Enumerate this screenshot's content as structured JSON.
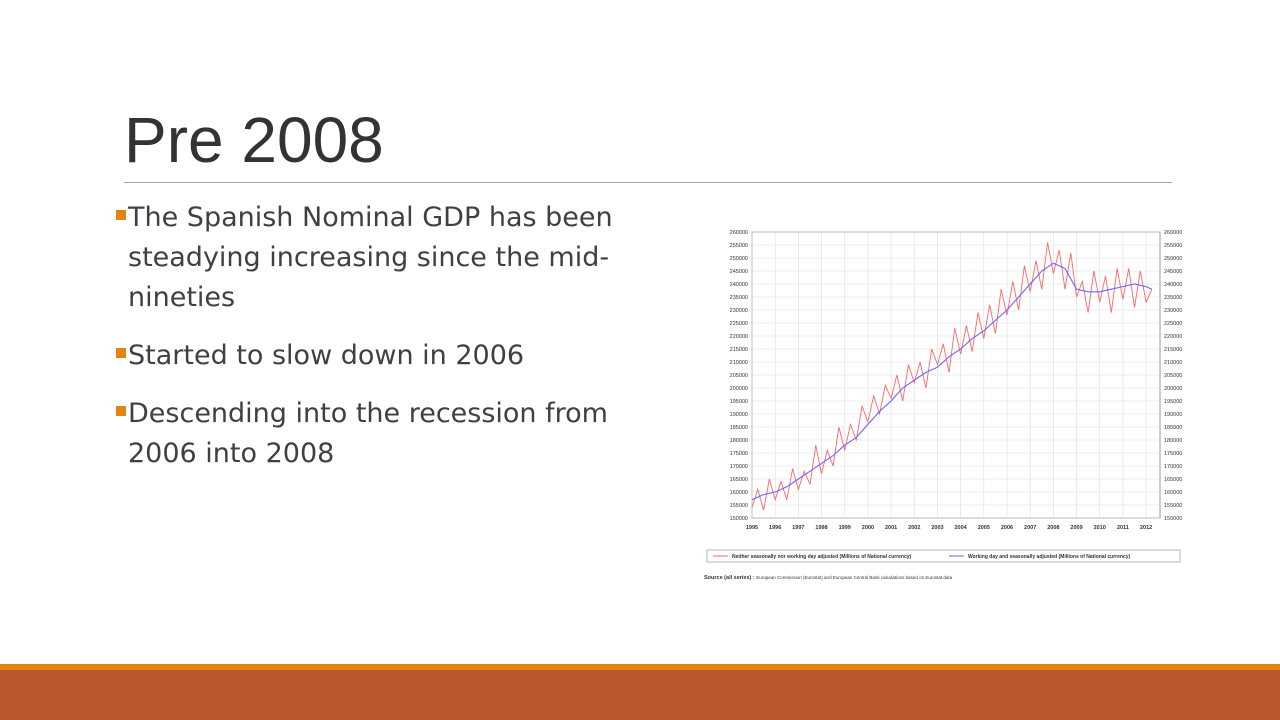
{
  "slide": {
    "title": "Pre 2008",
    "bullets": [
      "The Spanish Nominal GDP has been steadying increasing since the mid-nineties",
      "Started to slow down in 2006",
      "Descending into the recession from 2006 into 2008"
    ]
  },
  "colors": {
    "accent": "#e48312",
    "footer_bar": "#bd582c",
    "title_text": "#333333",
    "body_text": "#404040",
    "raw_series": "#ff6666",
    "adjusted_series": "#6666ff"
  },
  "chart_data": {
    "type": "line",
    "title": "",
    "xlabel": "",
    "ylabel": "",
    "xlim": [
      1995,
      2012.6
    ],
    "ylim": [
      150000,
      260000
    ],
    "x_ticks": [
      "1995",
      "1996",
      "1997",
      "1998",
      "1999",
      "2000",
      "2001",
      "2002",
      "2003",
      "2004",
      "2005",
      "2006",
      "2007",
      "2008",
      "2009",
      "2010",
      "2011",
      "2012"
    ],
    "y_ticks": [
      150000,
      155000,
      160000,
      165000,
      170000,
      175000,
      180000,
      185000,
      190000,
      195000,
      200000,
      205000,
      210000,
      215000,
      220000,
      225000,
      230000,
      235000,
      240000,
      245000,
      250000,
      255000,
      260000
    ],
    "grid": true,
    "legend_position": "bottom",
    "source_label": "Source (all series) :",
    "source_text": "European Commission (Eurostat) and European Central Bank calculations based on Eurostat data",
    "series": [
      {
        "name": "Neither seasonally nor working day adjusted (Millions of National currency)",
        "color": "#ff6666",
        "x": [
          1995.0,
          1995.25,
          1995.5,
          1995.75,
          1996.0,
          1996.25,
          1996.5,
          1996.75,
          1997.0,
          1997.25,
          1997.5,
          1997.75,
          1998.0,
          1998.25,
          1998.5,
          1998.75,
          1999.0,
          1999.25,
          1999.5,
          1999.75,
          2000.0,
          2000.25,
          2000.5,
          2000.75,
          2001.0,
          2001.25,
          2001.5,
          2001.75,
          2002.0,
          2002.25,
          2002.5,
          2002.75,
          2003.0,
          2003.25,
          2003.5,
          2003.75,
          2004.0,
          2004.25,
          2004.5,
          2004.75,
          2005.0,
          2005.25,
          2005.5,
          2005.75,
          2006.0,
          2006.25,
          2006.5,
          2006.75,
          2007.0,
          2007.25,
          2007.5,
          2007.75,
          2008.0,
          2008.25,
          2008.5,
          2008.75,
          2009.0,
          2009.25,
          2009.5,
          2009.75,
          2010.0,
          2010.25,
          2010.5,
          2010.75,
          2011.0,
          2011.25,
          2011.5,
          2011.75,
          2012.0,
          2012.25
        ],
        "y": [
          154000,
          161000,
          153000,
          165000,
          157000,
          164000,
          157000,
          169000,
          161000,
          168000,
          163000,
          178000,
          167000,
          176000,
          170000,
          185000,
          176000,
          186000,
          180000,
          193000,
          187000,
          197000,
          190000,
          201000,
          196000,
          205000,
          195000,
          209000,
          202000,
          210000,
          200000,
          215000,
          209000,
          217000,
          206000,
          223000,
          213000,
          224000,
          214000,
          229000,
          219000,
          232000,
          221000,
          238000,
          228000,
          241000,
          230000,
          247000,
          237000,
          249000,
          238000,
          256000,
          244000,
          253000,
          238000,
          252000,
          235000,
          241000,
          229000,
          245000,
          233000,
          243000,
          229000,
          246000,
          234000,
          246000,
          231000,
          245000,
          233000,
          238000
        ]
      },
      {
        "name": "Working day and seasonally adjusted (Millions of National currency)",
        "color": "#6666ff",
        "x": [
          1995.0,
          1995.5,
          1996.0,
          1996.5,
          1997.0,
          1997.5,
          1998.0,
          1998.5,
          1999.0,
          1999.5,
          2000.0,
          2000.5,
          2001.0,
          2001.5,
          2002.0,
          2002.5,
          2003.0,
          2003.5,
          2004.0,
          2004.5,
          2005.0,
          2005.5,
          2006.0,
          2006.5,
          2007.0,
          2007.5,
          2008.0,
          2008.5,
          2009.0,
          2009.5,
          2010.0,
          2010.5,
          2011.0,
          2011.5,
          2012.0,
          2012.25
        ],
        "y": [
          157000,
          159000,
          160000,
          162000,
          165000,
          168000,
          171000,
          174000,
          178000,
          181000,
          186000,
          191000,
          195000,
          200000,
          203000,
          206000,
          208000,
          212000,
          215000,
          219000,
          222000,
          226000,
          230000,
          235000,
          240000,
          245000,
          248000,
          246000,
          238000,
          237000,
          237000,
          238000,
          239000,
          240000,
          239000,
          238000
        ]
      }
    ]
  }
}
